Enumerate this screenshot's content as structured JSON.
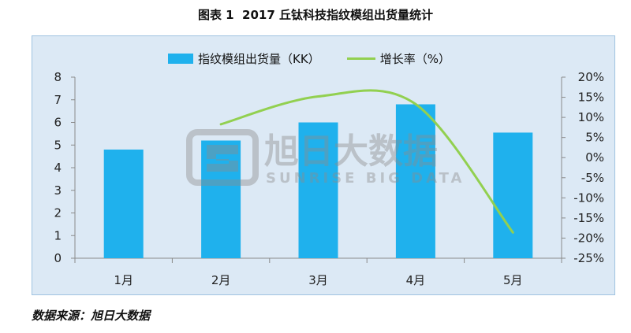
{
  "source": "数据来源：旭日大数据",
  "watermark": {
    "cn": "旭日大数据",
    "en": "SUNRISE BIG DATA"
  },
  "colors": {
    "panel": "#dce9f5",
    "panel_border": "#9fc3e1",
    "axis": "#8a8a8a",
    "watermark": "#8c8c8c"
  },
  "chart_data": {
    "type": "bar",
    "title": "图表 1  2017 丘钛科技指纹模组出货量统计",
    "categories": [
      "1月",
      "2月",
      "3月",
      "4月",
      "5月"
    ],
    "series": [
      {
        "name": "指纹模组出货量（KK）",
        "type": "bar",
        "axis": "left",
        "color": "#1fb1ed",
        "values": [
          4.8,
          5.2,
          6.0,
          6.8,
          5.55
        ]
      },
      {
        "name": "增长率（%）",
        "type": "line",
        "axis": "right",
        "color": "#92d050",
        "values": [
          null,
          8.3,
          15.2,
          13.3,
          -18.6
        ]
      }
    ],
    "y_left": {
      "ylim": [
        0,
        8
      ],
      "tick_labels": [
        "0",
        "1",
        "2",
        "3",
        "4",
        "5",
        "6",
        "7",
        "8"
      ]
    },
    "y_right": {
      "ylim": [
        -25,
        20
      ],
      "tick_labels": [
        "-25%",
        "-20%",
        "-15%",
        "-10%",
        "-5%",
        "0%",
        "5%",
        "10%",
        "15%",
        "20%"
      ]
    },
    "legend": "top-center",
    "grid": false
  }
}
